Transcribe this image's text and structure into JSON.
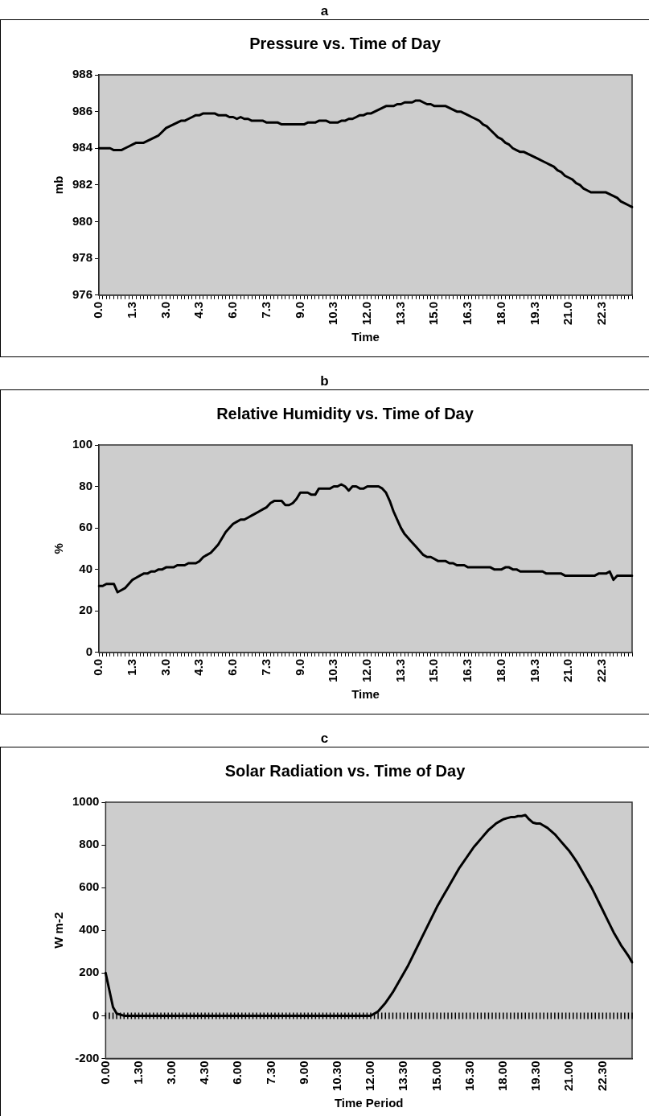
{
  "chart_data": [
    {
      "type": "line",
      "title": "Pressure vs. Time of Day",
      "xlabel": "Time",
      "ylabel": "mb",
      "annotations": [
        "a"
      ],
      "categories": [
        "0.0",
        null,
        null,
        null,
        null,
        null,
        null,
        null,
        null,
        "1.3",
        null,
        null,
        null,
        null,
        null,
        null,
        null,
        null,
        "3.0",
        null,
        null,
        null,
        null,
        null,
        null,
        null,
        null,
        "4.3",
        null,
        null,
        null,
        null,
        null,
        null,
        null,
        null,
        "6.0",
        null,
        null,
        null,
        null,
        null,
        null,
        null,
        null,
        "7.3",
        null,
        null,
        null,
        null,
        null,
        null,
        null,
        null,
        "9.0",
        null,
        null,
        null,
        null,
        null,
        null,
        null,
        null,
        "10.3",
        null,
        null,
        null,
        null,
        null,
        null,
        null,
        null,
        "12.0",
        null,
        null,
        null,
        null,
        null,
        null,
        null,
        null,
        "13.3",
        null,
        null,
        null,
        null,
        null,
        null,
        null,
        null,
        "15.0",
        null,
        null,
        null,
        null,
        null,
        null,
        null,
        null,
        "16.3",
        null,
        null,
        null,
        null,
        null,
        null,
        null,
        null,
        "18.0",
        null,
        null,
        null,
        null,
        null,
        null,
        null,
        null,
        "19.3",
        null,
        null,
        null,
        null,
        null,
        null,
        null,
        null,
        "21.0",
        null,
        null,
        null,
        null,
        null,
        null,
        null,
        null,
        "22.3",
        null,
        null,
        null,
        null,
        null,
        null,
        null,
        null
      ],
      "series": [
        {
          "color": "#000000",
          "values": [
            984.0,
            984.0,
            984.0,
            984.0,
            983.9,
            983.9,
            983.9,
            984.0,
            984.1,
            984.2,
            984.3,
            984.3,
            984.3,
            984.4,
            984.5,
            984.6,
            984.7,
            984.9,
            985.1,
            985.2,
            985.3,
            985.4,
            985.5,
            985.5,
            985.6,
            985.7,
            985.8,
            985.8,
            985.9,
            985.9,
            985.9,
            985.9,
            985.8,
            985.8,
            985.8,
            985.7,
            985.7,
            985.6,
            985.7,
            985.6,
            985.6,
            985.5,
            985.5,
            985.5,
            985.5,
            985.4,
            985.4,
            985.4,
            985.4,
            985.3,
            985.3,
            985.3,
            985.3,
            985.3,
            985.3,
            985.3,
            985.4,
            985.4,
            985.4,
            985.5,
            985.5,
            985.5,
            985.4,
            985.4,
            985.4,
            985.5,
            985.5,
            985.6,
            985.6,
            985.7,
            985.8,
            985.8,
            985.9,
            985.9,
            986.0,
            986.1,
            986.2,
            986.3,
            986.3,
            986.3,
            986.4,
            986.4,
            986.5,
            986.5,
            986.5,
            986.6,
            986.6,
            986.5,
            986.4,
            986.4,
            986.3,
            986.3,
            986.3,
            986.3,
            986.2,
            986.1,
            986.0,
            986.0,
            985.9,
            985.8,
            985.7,
            985.6,
            985.5,
            985.3,
            985.2,
            985.0,
            984.8,
            984.6,
            984.5,
            984.3,
            984.2,
            984.0,
            983.9,
            983.8,
            983.8,
            983.7,
            983.6,
            983.5,
            983.4,
            983.3,
            983.2,
            983.1,
            983.0,
            982.8,
            982.7,
            982.5,
            982.4,
            982.3,
            982.1,
            982.0,
            981.8,
            981.7,
            981.6,
            981.6,
            981.6,
            981.6,
            981.6,
            981.5,
            981.4,
            981.3,
            981.1,
            981.0,
            980.9,
            980.8
          ]
        }
      ],
      "ylim": [
        976,
        988
      ],
      "yticks": [
        976,
        978,
        980,
        982,
        984,
        986,
        988
      ],
      "grid": false,
      "legend": false,
      "marker": "none",
      "line_style": "solid"
    },
    {
      "type": "line",
      "title": "Relative Humidity vs. Time of Day",
      "xlabel": "Time",
      "ylabel": "%",
      "annotations": [
        "b"
      ],
      "categories": [
        "0.0",
        null,
        null,
        null,
        null,
        null,
        null,
        null,
        null,
        "1.3",
        null,
        null,
        null,
        null,
        null,
        null,
        null,
        null,
        "3.0",
        null,
        null,
        null,
        null,
        null,
        null,
        null,
        null,
        "4.3",
        null,
        null,
        null,
        null,
        null,
        null,
        null,
        null,
        "6.0",
        null,
        null,
        null,
        null,
        null,
        null,
        null,
        null,
        "7.3",
        null,
        null,
        null,
        null,
        null,
        null,
        null,
        null,
        "9.0",
        null,
        null,
        null,
        null,
        null,
        null,
        null,
        null,
        "10.3",
        null,
        null,
        null,
        null,
        null,
        null,
        null,
        null,
        "12.0",
        null,
        null,
        null,
        null,
        null,
        null,
        null,
        null,
        "13.3",
        null,
        null,
        null,
        null,
        null,
        null,
        null,
        null,
        "15.0",
        null,
        null,
        null,
        null,
        null,
        null,
        null,
        null,
        "16.3",
        null,
        null,
        null,
        null,
        null,
        null,
        null,
        null,
        "18.0",
        null,
        null,
        null,
        null,
        null,
        null,
        null,
        null,
        "19.3",
        null,
        null,
        null,
        null,
        null,
        null,
        null,
        null,
        "21.0",
        null,
        null,
        null,
        null,
        null,
        null,
        null,
        null,
        "22.3",
        null,
        null,
        null,
        null,
        null,
        null,
        null,
        null
      ],
      "series": [
        {
          "color": "#000000",
          "values": [
            32,
            32,
            33,
            33,
            33,
            29,
            30,
            31,
            33,
            35,
            36,
            37,
            38,
            38,
            39,
            39,
            40,
            40,
            41,
            41,
            41,
            42,
            42,
            42,
            43,
            43,
            43,
            44,
            46,
            47,
            48,
            50,
            52,
            55,
            58,
            60,
            62,
            63,
            64,
            64,
            65,
            66,
            67,
            68,
            69,
            70,
            72,
            73,
            73,
            73,
            71,
            71,
            72,
            74,
            77,
            77,
            77,
            76,
            76,
            79,
            79,
            79,
            79,
            80,
            80,
            81,
            80,
            78,
            80,
            80,
            79,
            79,
            80,
            80,
            80,
            80,
            79,
            77,
            73,
            68,
            64,
            60,
            57,
            55,
            53,
            51,
            49,
            47,
            46,
            46,
            45,
            44,
            44,
            44,
            43,
            43,
            42,
            42,
            42,
            41,
            41,
            41,
            41,
            41,
            41,
            41,
            40,
            40,
            40,
            41,
            41,
            40,
            40,
            39,
            39,
            39,
            39,
            39,
            39,
            39,
            38,
            38,
            38,
            38,
            38,
            37,
            37,
            37,
            37,
            37,
            37,
            37,
            37,
            37,
            38,
            38,
            38,
            39,
            35,
            37,
            37,
            37,
            37,
            37
          ]
        }
      ],
      "ylim": [
        0,
        100
      ],
      "yticks": [
        0,
        20,
        40,
        60,
        80,
        100
      ],
      "grid": false,
      "legend": false,
      "marker": "none",
      "line_style": "solid"
    },
    {
      "type": "line",
      "title": "Solar Radiation vs. Time of Day",
      "xlabel": "Time Period",
      "ylabel": "W m-2",
      "annotations": [
        "c"
      ],
      "categories": [
        "0.00",
        null,
        null,
        null,
        null,
        null,
        null,
        null,
        null,
        "1.30",
        null,
        null,
        null,
        null,
        null,
        null,
        null,
        null,
        "3.00",
        null,
        null,
        null,
        null,
        null,
        null,
        null,
        null,
        "4.30",
        null,
        null,
        null,
        null,
        null,
        null,
        null,
        null,
        "6.00",
        null,
        null,
        null,
        null,
        null,
        null,
        null,
        null,
        "7.30",
        null,
        null,
        null,
        null,
        null,
        null,
        null,
        null,
        "9.00",
        null,
        null,
        null,
        null,
        null,
        null,
        null,
        null,
        "10.30",
        null,
        null,
        null,
        null,
        null,
        null,
        null,
        null,
        "12.00",
        null,
        null,
        null,
        null,
        null,
        null,
        null,
        null,
        "13.30",
        null,
        null,
        null,
        null,
        null,
        null,
        null,
        null,
        "15.00",
        null,
        null,
        null,
        null,
        null,
        null,
        null,
        null,
        "16.30",
        null,
        null,
        null,
        null,
        null,
        null,
        null,
        null,
        "18.00",
        null,
        null,
        null,
        null,
        null,
        null,
        null,
        null,
        "19.30",
        null,
        null,
        null,
        null,
        null,
        null,
        null,
        null,
        "21.00",
        null,
        null,
        null,
        null,
        null,
        null,
        null,
        null,
        "22.30",
        null,
        null,
        null,
        null,
        null,
        null,
        null,
        null
      ],
      "series": [
        {
          "color": "#000000",
          "values": [
            200,
            120,
            40,
            10,
            5,
            0,
            0,
            0,
            0,
            0,
            0,
            0,
            0,
            0,
            0,
            0,
            0,
            0,
            0,
            0,
            0,
            0,
            0,
            0,
            0,
            0,
            0,
            0,
            0,
            0,
            0,
            0,
            0,
            0,
            0,
            0,
            0,
            0,
            0,
            0,
            0,
            0,
            0,
            0,
            0,
            0,
            0,
            0,
            0,
            0,
            0,
            0,
            0,
            0,
            0,
            0,
            0,
            0,
            0,
            0,
            0,
            0,
            0,
            0,
            0,
            0,
            0,
            0,
            0,
            0,
            0,
            0,
            0,
            10,
            20,
            40,
            60,
            85,
            110,
            140,
            170,
            200,
            230,
            265,
            300,
            335,
            370,
            405,
            440,
            475,
            510,
            540,
            570,
            600,
            630,
            660,
            690,
            715,
            740,
            765,
            790,
            810,
            830,
            850,
            870,
            885,
            900,
            910,
            920,
            925,
            930,
            930,
            935,
            935,
            940,
            920,
            905,
            900,
            900,
            890,
            880,
            865,
            850,
            830,
            810,
            790,
            770,
            745,
            720,
            690,
            660,
            630,
            600,
            565,
            530,
            495,
            460,
            425,
            390,
            360,
            330,
            305,
            280,
            250
          ]
        }
      ],
      "ylim": [
        -200,
        1000
      ],
      "yticks": [
        -200,
        0,
        200,
        400,
        600,
        800,
        1000
      ],
      "grid": false,
      "legend": false,
      "marker": "none",
      "line_style": "solid"
    }
  ]
}
